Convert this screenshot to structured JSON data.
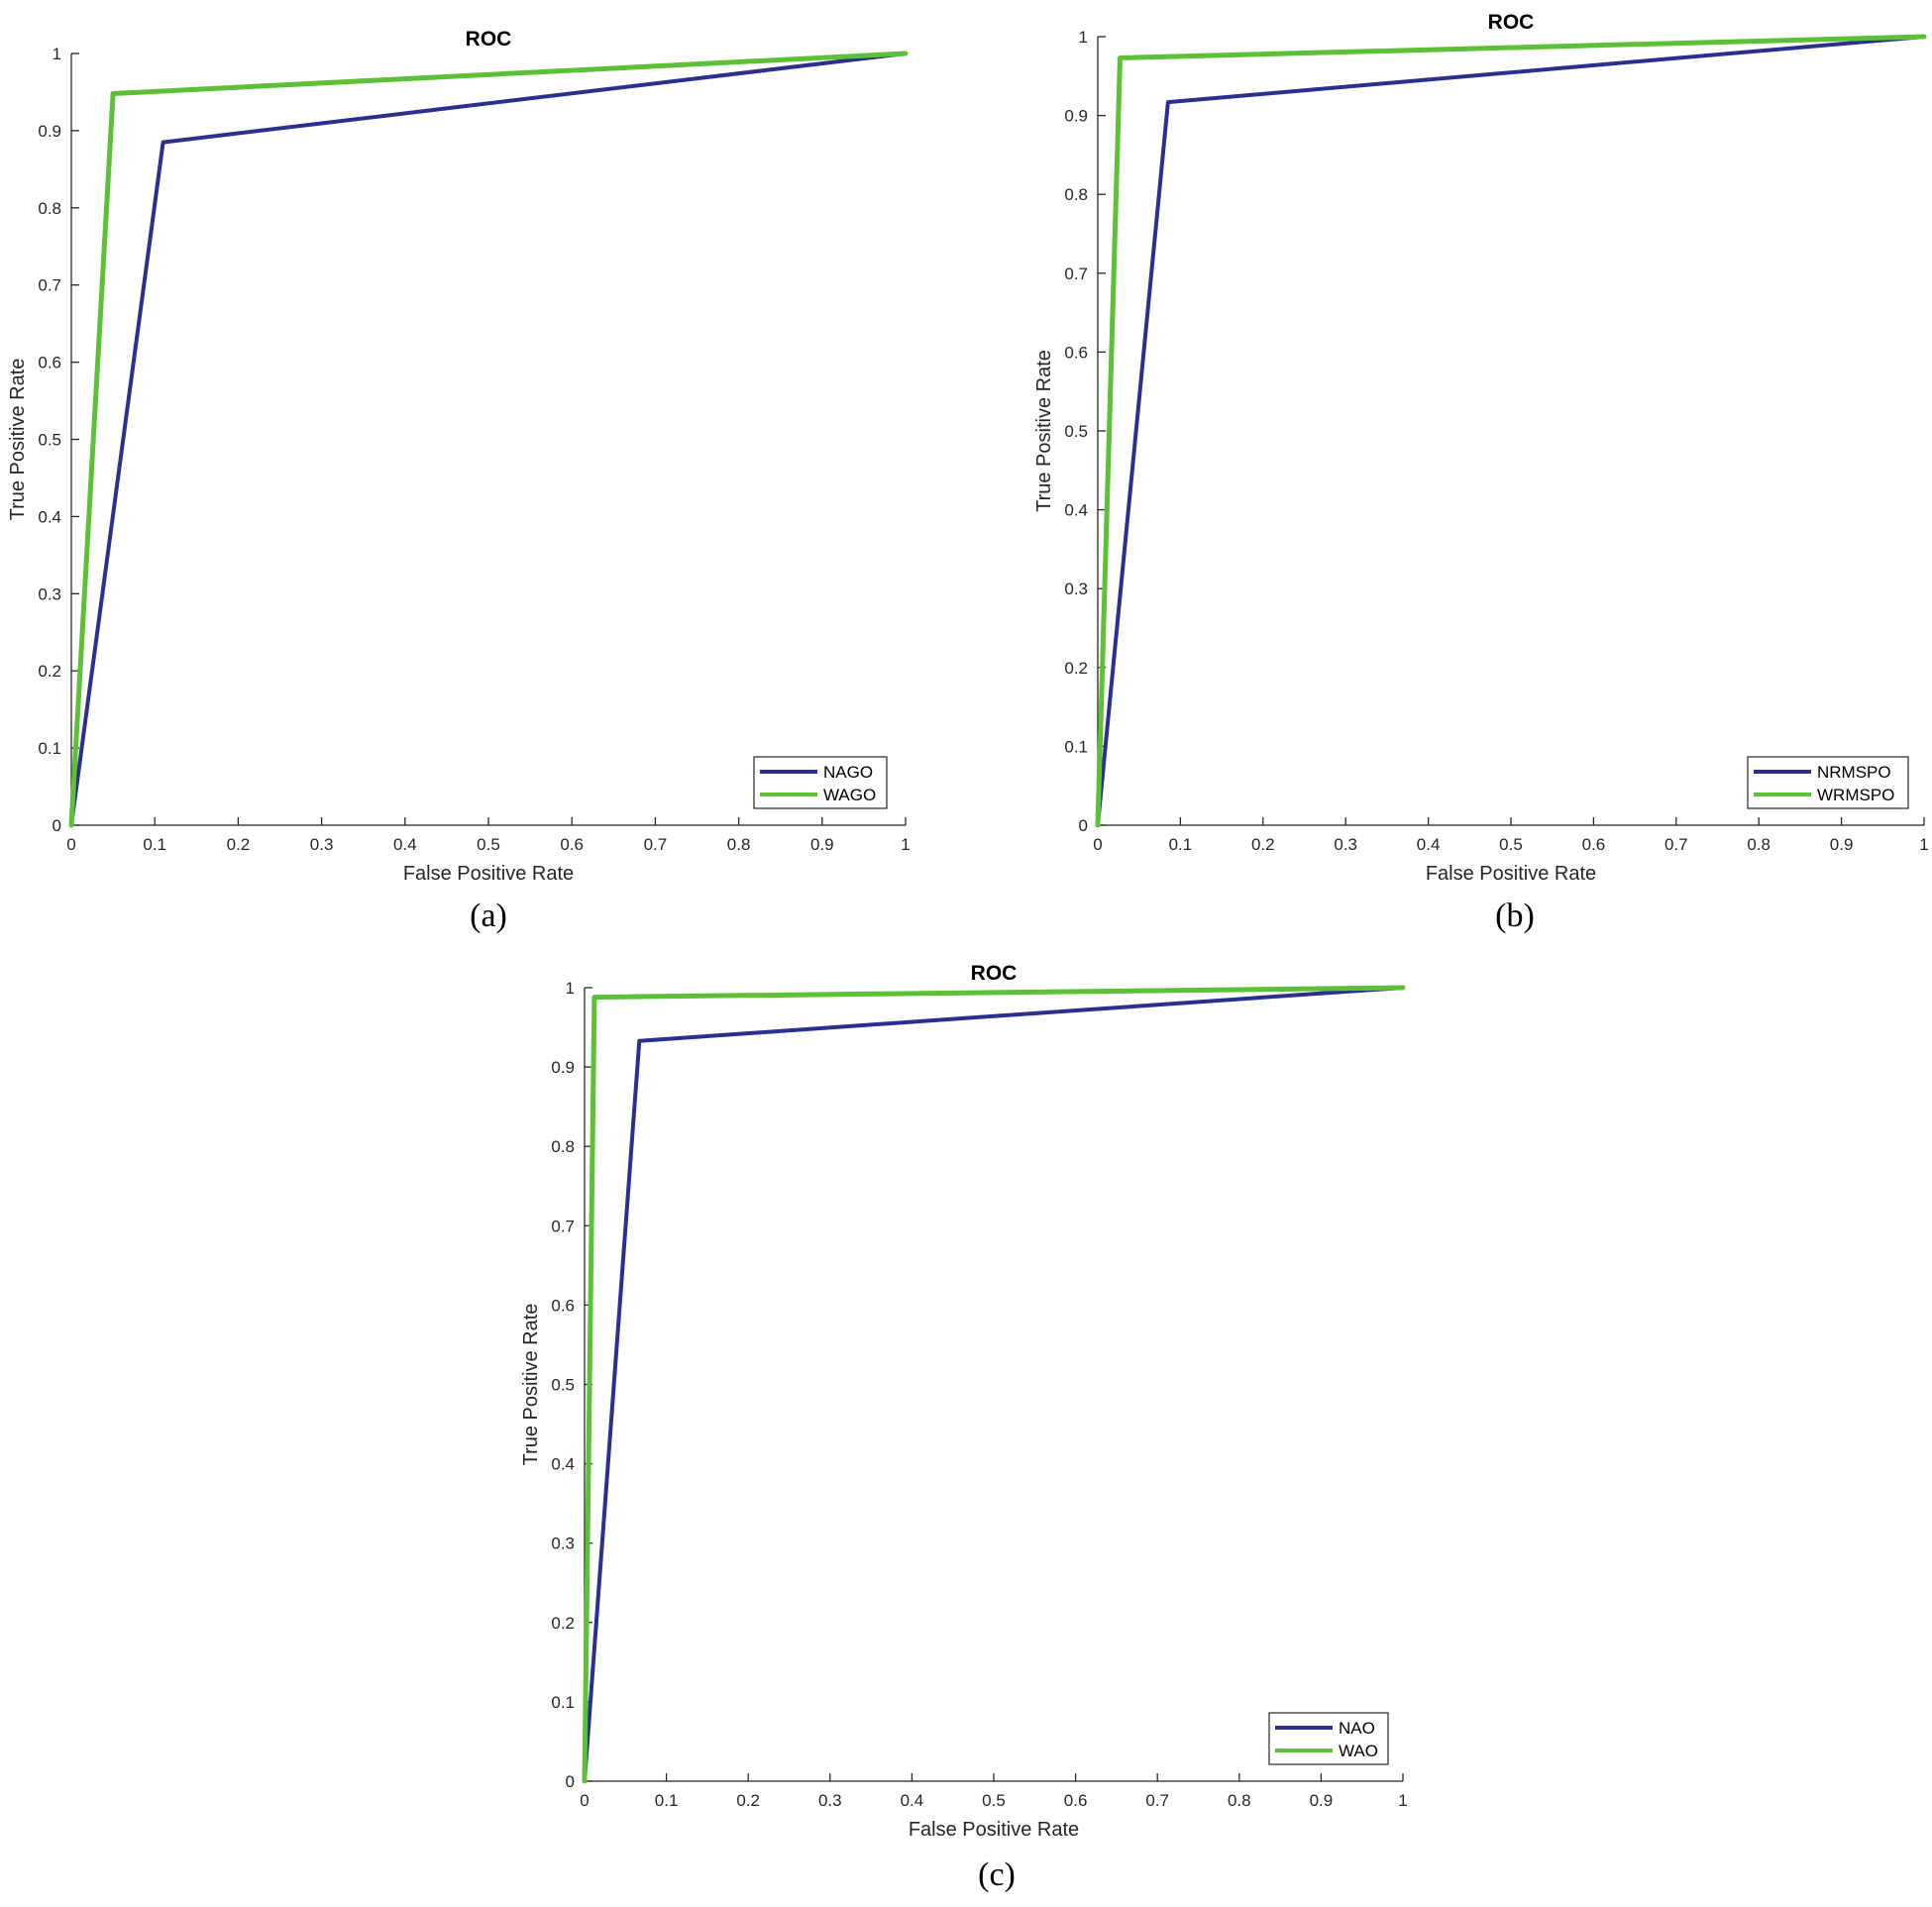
{
  "colors": {
    "blue": "#2b2f8f",
    "green": "#5cc136"
  },
  "chart_data": [
    {
      "panel": "(a)",
      "type": "line",
      "title": "ROC",
      "xlabel": "False Positive Rate",
      "ylabel": "True Positive Rate",
      "xlim": [
        0,
        1
      ],
      "ylim": [
        0,
        1
      ],
      "xticks": [
        "0",
        "0.1",
        "0.2",
        "0.3",
        "0.4",
        "0.5",
        "0.6",
        "0.7",
        "0.8",
        "0.9",
        "1"
      ],
      "yticks": [
        "0",
        "0.1",
        "0.2",
        "0.3",
        "0.4",
        "0.5",
        "0.6",
        "0.7",
        "0.8",
        "0.9",
        "1"
      ],
      "grid": false,
      "legend_position": "bottom-right",
      "series": [
        {
          "name": "NAGO",
          "color": "#2b2f8f",
          "x": [
            0,
            0.11,
            1
          ],
          "y": [
            0,
            0.885,
            1
          ]
        },
        {
          "name": "WAGO",
          "color": "#5cc136",
          "x": [
            0,
            0.05,
            1
          ],
          "y": [
            0,
            0.948,
            1
          ]
        }
      ]
    },
    {
      "panel": "(b)",
      "type": "line",
      "title": "ROC",
      "xlabel": "False Positive Rate",
      "ylabel": "True Positive Rate",
      "xlim": [
        0,
        1
      ],
      "ylim": [
        0,
        1
      ],
      "xticks": [
        "0",
        "0.1",
        "0.2",
        "0.3",
        "0.4",
        "0.5",
        "0.6",
        "0.7",
        "0.8",
        "0.9",
        "1"
      ],
      "yticks": [
        "0",
        "0.1",
        "0.2",
        "0.3",
        "0.4",
        "0.5",
        "0.6",
        "0.7",
        "0.8",
        "0.9",
        "1"
      ],
      "grid": false,
      "legend_position": "bottom-right",
      "series": [
        {
          "name": "NRMSPO",
          "color": "#2b2f8f",
          "x": [
            0,
            0.085,
            1
          ],
          "y": [
            0,
            0.917,
            1
          ]
        },
        {
          "name": "WRMSPO",
          "color": "#5cc136",
          "x": [
            0,
            0.027,
            1
          ],
          "y": [
            0,
            0.973,
            1
          ]
        }
      ]
    },
    {
      "panel": "(c)",
      "type": "line",
      "title": "ROC",
      "xlabel": "False Positive Rate",
      "ylabel": "True Positive Rate",
      "xlim": [
        0,
        1
      ],
      "ylim": [
        0,
        1
      ],
      "xticks": [
        "0",
        "0.1",
        "0.2",
        "0.3",
        "0.4",
        "0.5",
        "0.6",
        "0.7",
        "0.8",
        "0.9",
        "1"
      ],
      "yticks": [
        "0",
        "0.1",
        "0.2",
        "0.3",
        "0.4",
        "0.5",
        "0.6",
        "0.7",
        "0.8",
        "0.9",
        "1"
      ],
      "grid": false,
      "legend_position": "bottom-right",
      "series": [
        {
          "name": "NAO",
          "color": "#2b2f8f",
          "x": [
            0,
            0.067,
            1
          ],
          "y": [
            0,
            0.933,
            1
          ]
        },
        {
          "name": "WAO",
          "color": "#5cc136",
          "x": [
            0,
            0.012,
            1
          ],
          "y": [
            0,
            0.988,
            1
          ]
        }
      ]
    }
  ]
}
